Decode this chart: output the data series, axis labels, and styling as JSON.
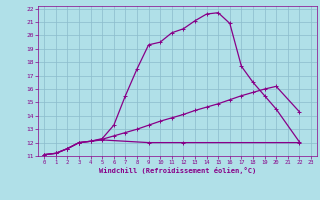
{
  "xlabel": "Windchill (Refroidissement éolien,°C)",
  "bg_color": "#b0e0e8",
  "grid_color": "#8cbccc",
  "line_color": "#880088",
  "xlim": [
    -0.5,
    23.5
  ],
  "ylim": [
    11,
    22.2
  ],
  "xticks": [
    0,
    1,
    2,
    3,
    4,
    5,
    6,
    7,
    8,
    9,
    10,
    11,
    12,
    13,
    14,
    15,
    16,
    17,
    18,
    19,
    20,
    21,
    22,
    23
  ],
  "yticks": [
    11,
    12,
    13,
    14,
    15,
    16,
    17,
    18,
    19,
    20,
    21,
    22
  ],
  "curve1_x": [
    0,
    1,
    2,
    3,
    4,
    5,
    9,
    12,
    22
  ],
  "curve1_y": [
    11.1,
    11.2,
    11.55,
    12.0,
    12.1,
    12.2,
    12.0,
    12.0,
    12.0
  ],
  "curve2_x": [
    0,
    1,
    2,
    3,
    4,
    5,
    6,
    7,
    8,
    9,
    10,
    11,
    12,
    13,
    14,
    15,
    16,
    17,
    18,
    19,
    20,
    22
  ],
  "curve2_y": [
    11.1,
    11.2,
    11.55,
    12.0,
    12.1,
    12.25,
    12.5,
    12.75,
    13.0,
    13.3,
    13.6,
    13.85,
    14.1,
    14.4,
    14.65,
    14.9,
    15.2,
    15.5,
    15.75,
    16.0,
    16.2,
    14.3
  ],
  "curve3_x": [
    0,
    1,
    2,
    3,
    4,
    5,
    6,
    7,
    8,
    9,
    10,
    11,
    12,
    13,
    14,
    15,
    16,
    17,
    18,
    19,
    20,
    22
  ],
  "curve3_y": [
    11.1,
    11.2,
    11.55,
    12.0,
    12.1,
    12.3,
    13.3,
    15.5,
    17.5,
    19.3,
    19.5,
    20.2,
    20.5,
    21.1,
    21.6,
    21.7,
    20.9,
    17.7,
    16.5,
    15.5,
    14.5,
    12.05
  ],
  "marker": "+",
  "markersize": 3,
  "linewidth": 0.9
}
